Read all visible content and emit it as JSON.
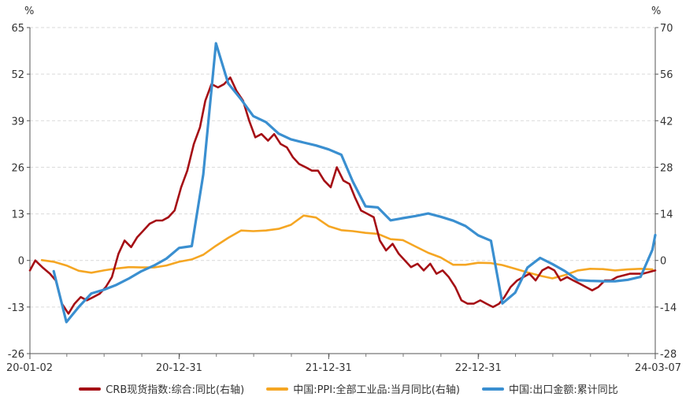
{
  "chart_data": {
    "type": "line",
    "left_unit": "%",
    "right_unit": "%",
    "left_ticks": [
      65,
      52,
      39,
      26,
      13,
      0,
      -13,
      -26
    ],
    "right_ticks": [
      70,
      56,
      42,
      28,
      14,
      0,
      -14,
      -28
    ],
    "left_ylim": [
      -26,
      65
    ],
    "right_ylim": [
      -28,
      70
    ],
    "x_range": [
      "2020-01-02",
      "2024-03-07"
    ],
    "x_tick_labels": [
      {
        "date": "2020-01-02",
        "label": "20-01-02"
      },
      {
        "date": "2020-12-31",
        "label": "20-12-31"
      },
      {
        "date": "2021-12-31",
        "label": "21-12-31"
      },
      {
        "date": "2022-12-31",
        "label": "22-12-31"
      },
      {
        "date": "2024-03-07",
        "label": "24-03-07"
      }
    ],
    "grid": "horizontal dashed",
    "legend_position": "bottom",
    "series": [
      {
        "name": "CRB现货指数:综合:同比(右轴)",
        "color": "#a50f15",
        "axis": "right",
        "points": [
          [
            "2020-01-02",
            -3
          ],
          [
            "2020-01-15",
            0
          ],
          [
            "2020-02-01",
            -2
          ],
          [
            "2020-02-20",
            -4
          ],
          [
            "2020-03-05",
            -6
          ],
          [
            "2020-03-20",
            -13
          ],
          [
            "2020-04-05",
            -16
          ],
          [
            "2020-04-20",
            -13
          ],
          [
            "2020-05-05",
            -11
          ],
          [
            "2020-05-20",
            -12
          ],
          [
            "2020-06-05",
            -11
          ],
          [
            "2020-06-20",
            -10
          ],
          [
            "2020-07-05",
            -8
          ],
          [
            "2020-07-20",
            -5
          ],
          [
            "2020-08-05",
            2
          ],
          [
            "2020-08-20",
            6
          ],
          [
            "2020-09-05",
            4
          ],
          [
            "2020-09-20",
            7
          ],
          [
            "2020-10-05",
            9
          ],
          [
            "2020-10-20",
            11
          ],
          [
            "2020-11-05",
            12
          ],
          [
            "2020-11-20",
            12
          ],
          [
            "2020-12-05",
            13
          ],
          [
            "2020-12-20",
            15
          ],
          [
            "2021-01-05",
            22
          ],
          [
            "2021-01-20",
            27
          ],
          [
            "2021-02-05",
            35
          ],
          [
            "2021-02-20",
            40
          ],
          [
            "2021-03-05",
            48
          ],
          [
            "2021-03-20",
            53
          ],
          [
            "2021-04-05",
            52
          ],
          [
            "2021-04-20",
            53
          ],
          [
            "2021-05-05",
            55
          ],
          [
            "2021-05-20",
            51
          ],
          [
            "2021-06-05",
            48
          ],
          [
            "2021-06-20",
            42
          ],
          [
            "2021-07-05",
            37
          ],
          [
            "2021-07-20",
            38
          ],
          [
            "2021-08-05",
            36
          ],
          [
            "2021-08-20",
            38
          ],
          [
            "2021-09-05",
            35
          ],
          [
            "2021-09-20",
            34
          ],
          [
            "2021-10-05",
            31
          ],
          [
            "2021-10-20",
            29
          ],
          [
            "2021-11-05",
            28
          ],
          [
            "2021-11-20",
            27
          ],
          [
            "2021-12-05",
            27
          ],
          [
            "2021-12-20",
            24
          ],
          [
            "2022-01-05",
            22
          ],
          [
            "2022-01-20",
            28
          ],
          [
            "2022-02-05",
            24
          ],
          [
            "2022-02-20",
            23
          ],
          [
            "2022-03-05",
            19
          ],
          [
            "2022-03-20",
            15
          ],
          [
            "2022-04-05",
            14
          ],
          [
            "2022-04-20",
            13
          ],
          [
            "2022-05-05",
            6
          ],
          [
            "2022-05-20",
            3
          ],
          [
            "2022-06-05",
            5
          ],
          [
            "2022-06-20",
            2
          ],
          [
            "2022-07-05",
            0
          ],
          [
            "2022-07-20",
            -2
          ],
          [
            "2022-08-05",
            -1
          ],
          [
            "2022-08-20",
            -3
          ],
          [
            "2022-09-05",
            -1
          ],
          [
            "2022-09-20",
            -4
          ],
          [
            "2022-10-05",
            -3
          ],
          [
            "2022-10-20",
            -5
          ],
          [
            "2022-11-05",
            -8
          ],
          [
            "2022-11-20",
            -12
          ],
          [
            "2022-12-05",
            -13
          ],
          [
            "2022-12-20",
            -13
          ],
          [
            "2023-01-05",
            -12
          ],
          [
            "2023-01-20",
            -13
          ],
          [
            "2023-02-05",
            -14
          ],
          [
            "2023-02-20",
            -13
          ],
          [
            "2023-03-05",
            -11
          ],
          [
            "2023-03-20",
            -8
          ],
          [
            "2023-04-05",
            -6
          ],
          [
            "2023-04-20",
            -5
          ],
          [
            "2023-05-05",
            -4
          ],
          [
            "2023-05-20",
            -6
          ],
          [
            "2023-06-05",
            -3
          ],
          [
            "2023-06-20",
            -2
          ],
          [
            "2023-07-05",
            -3
          ],
          [
            "2023-07-20",
            -6
          ],
          [
            "2023-08-05",
            -5
          ],
          [
            "2023-08-20",
            -6
          ],
          [
            "2023-09-05",
            -7
          ],
          [
            "2023-09-20",
            -8
          ],
          [
            "2023-10-05",
            -9
          ],
          [
            "2023-10-20",
            -8
          ],
          [
            "2023-11-05",
            -6
          ],
          [
            "2023-11-20",
            -6
          ],
          [
            "2023-12-05",
            -5
          ],
          [
            "2024-01-05",
            -4
          ],
          [
            "2024-02-05",
            -4
          ],
          [
            "2024-03-07",
            -3
          ]
        ]
      },
      {
        "name": "中国:PPI:全部工业品:当月同比(右轴)",
        "color": "#f5a623",
        "axis": "right",
        "points": [
          [
            "2020-01-31",
            0.1
          ],
          [
            "2020-02-29",
            -0.4
          ],
          [
            "2020-03-31",
            -1.5
          ],
          [
            "2020-04-30",
            -3.1
          ],
          [
            "2020-05-31",
            -3.7
          ],
          [
            "2020-06-30",
            -3.0
          ],
          [
            "2020-07-31",
            -2.4
          ],
          [
            "2020-08-31",
            -2.0
          ],
          [
            "2020-09-30",
            -2.1
          ],
          [
            "2020-10-31",
            -2.1
          ],
          [
            "2020-11-30",
            -1.5
          ],
          [
            "2020-12-31",
            -0.4
          ],
          [
            "2021-01-31",
            0.3
          ],
          [
            "2021-02-28",
            1.7
          ],
          [
            "2021-03-31",
            4.4
          ],
          [
            "2021-04-30",
            6.8
          ],
          [
            "2021-05-31",
            9.0
          ],
          [
            "2021-06-30",
            8.8
          ],
          [
            "2021-07-31",
            9.0
          ],
          [
            "2021-08-31",
            9.5
          ],
          [
            "2021-09-30",
            10.7
          ],
          [
            "2021-10-31",
            13.5
          ],
          [
            "2021-11-30",
            12.9
          ],
          [
            "2021-12-31",
            10.3
          ],
          [
            "2022-01-31",
            9.1
          ],
          [
            "2022-02-28",
            8.8
          ],
          [
            "2022-03-31",
            8.3
          ],
          [
            "2022-04-30",
            8.0
          ],
          [
            "2022-05-31",
            6.4
          ],
          [
            "2022-06-30",
            6.1
          ],
          [
            "2022-07-31",
            4.2
          ],
          [
            "2022-08-31",
            2.3
          ],
          [
            "2022-09-30",
            0.9
          ],
          [
            "2022-10-31",
            -1.3
          ],
          [
            "2022-11-30",
            -1.3
          ],
          [
            "2022-12-31",
            -0.7
          ],
          [
            "2023-01-31",
            -0.8
          ],
          [
            "2023-02-28",
            -1.4
          ],
          [
            "2023-03-31",
            -2.5
          ],
          [
            "2023-04-30",
            -3.6
          ],
          [
            "2023-05-31",
            -4.6
          ],
          [
            "2023-06-30",
            -5.4
          ],
          [
            "2023-07-31",
            -4.4
          ],
          [
            "2023-08-31",
            -3.0
          ],
          [
            "2023-09-30",
            -2.5
          ],
          [
            "2023-10-31",
            -2.6
          ],
          [
            "2023-11-30",
            -3.0
          ],
          [
            "2023-12-31",
            -2.7
          ],
          [
            "2024-01-31",
            -2.5
          ],
          [
            "2024-02-29",
            -2.7
          ]
        ]
      },
      {
        "name": "中国:出口金额:累计同比",
        "color": "#3a8fd0",
        "axis": "left",
        "points": [
          [
            "2020-02-29",
            -3
          ],
          [
            "2020-03-31",
            -17.2
          ],
          [
            "2020-04-30",
            -13
          ],
          [
            "2020-05-31",
            -9.2
          ],
          [
            "2020-06-30",
            -8.2
          ],
          [
            "2020-07-31",
            -6.8
          ],
          [
            "2020-08-31",
            -5.0
          ],
          [
            "2020-09-30",
            -3.0
          ],
          [
            "2020-10-31",
            -1.4
          ],
          [
            "2020-11-30",
            0.5
          ],
          [
            "2020-12-31",
            3.5
          ],
          [
            "2021-01-31",
            4
          ],
          [
            "2021-02-28",
            24
          ],
          [
            "2021-03-31",
            60.6
          ],
          [
            "2021-04-30",
            49.4
          ],
          [
            "2021-05-31",
            45
          ],
          [
            "2021-06-30",
            40.3
          ],
          [
            "2021-07-31",
            38.6
          ],
          [
            "2021-08-31",
            35.4
          ],
          [
            "2021-09-30",
            33.8
          ],
          [
            "2021-10-31",
            32.9
          ],
          [
            "2021-11-30",
            32.1
          ],
          [
            "2021-12-31",
            31.0
          ],
          [
            "2022-01-31",
            29.5
          ],
          [
            "2022-02-28",
            22
          ],
          [
            "2022-03-31",
            15.1
          ],
          [
            "2022-04-30",
            14.8
          ],
          [
            "2022-05-31",
            11.2
          ],
          [
            "2022-06-30",
            11.8
          ],
          [
            "2022-07-31",
            12.4
          ],
          [
            "2022-08-31",
            13.1
          ],
          [
            "2022-09-30",
            12.2
          ],
          [
            "2022-10-31",
            11.1
          ],
          [
            "2022-11-30",
            9.6
          ],
          [
            "2022-12-31",
            7
          ],
          [
            "2023-01-31",
            5.5
          ],
          [
            "2023-02-28",
            -12
          ],
          [
            "2023-03-31",
            -9
          ],
          [
            "2023-04-30",
            -2
          ],
          [
            "2023-05-31",
            0.7
          ],
          [
            "2023-06-30",
            -1
          ],
          [
            "2023-07-31",
            -3
          ],
          [
            "2023-08-31",
            -5.5
          ],
          [
            "2023-09-30",
            -5.7
          ],
          [
            "2023-10-31",
            -5.8
          ],
          [
            "2023-11-30",
            -5.8
          ],
          [
            "2023-12-31",
            -5.4
          ],
          [
            "2024-01-31",
            -4.6
          ],
          [
            "2024-02-29",
            3
          ],
          [
            "2024-03-07",
            7.1
          ]
        ]
      }
    ]
  }
}
